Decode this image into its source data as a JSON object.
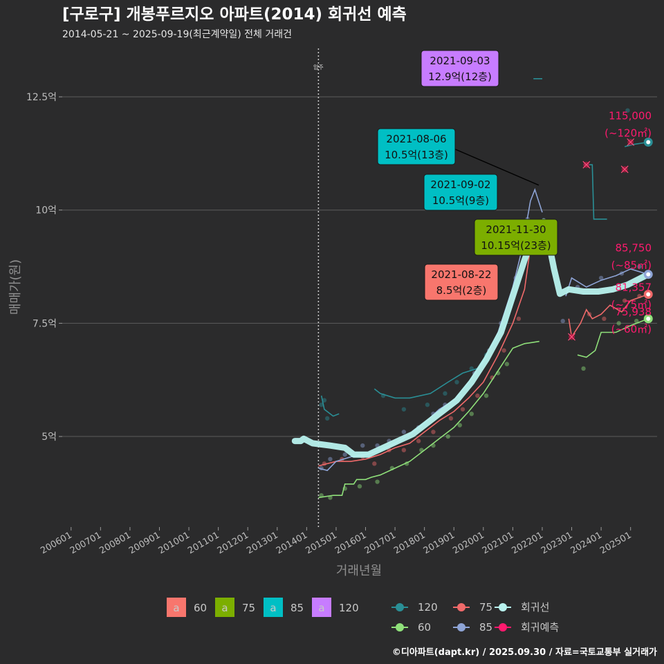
{
  "chart_data": {
    "type": "scatter",
    "title": "[구로구] 개봉푸르지오 아파트(2014) 회귀선 예측",
    "subtitle": "2014-05-21 ~ 2025-09-19(최근계약일) 전체 거래건",
    "xlabel": "거래년월",
    "ylabel": "매매가(원)",
    "x_ticks": [
      "200601",
      "200701",
      "200801",
      "200901",
      "201001",
      "201101",
      "201201",
      "201301",
      "201401",
      "201501",
      "201601",
      "201701",
      "201801",
      "201901",
      "202001",
      "202101",
      "202201",
      "202301",
      "202401",
      "202501"
    ],
    "xlim": [
      2005.7,
      2025.9
    ],
    "y_ticks": [
      {
        "v": 5,
        "label": "5억"
      },
      {
        "v": 7.5,
        "label": "7.5억"
      },
      {
        "v": 10,
        "label": "10억"
      },
      {
        "v": 12.5,
        "label": "12.5억"
      }
    ],
    "ylim": [
      3.0,
      13.6
    ],
    "grid": true,
    "move_in": {
      "x": 2014.4,
      "label": "입주"
    },
    "series": [
      {
        "name": "60",
        "color": "#8fe07a",
        "line": [
          [
            2014.4,
            3.65
          ],
          [
            2014.9,
            3.7
          ],
          [
            2015.2,
            3.7
          ],
          [
            2015.3,
            3.95
          ],
          [
            2015.6,
            3.95
          ],
          [
            2015.7,
            4.05
          ],
          [
            2016.0,
            4.05
          ],
          [
            2016.2,
            4.1
          ],
          [
            2016.5,
            4.15
          ],
          [
            2017.0,
            4.3
          ],
          [
            2017.5,
            4.45
          ],
          [
            2018.0,
            4.7
          ],
          [
            2018.5,
            4.95
          ],
          [
            2019.0,
            5.2
          ],
          [
            2019.5,
            5.55
          ],
          [
            2020.0,
            5.95
          ],
          [
            2020.5,
            6.45
          ],
          [
            2021.0,
            6.95
          ],
          [
            2021.4,
            7.05
          ],
          [
            2021.9,
            7.1
          ]
        ],
        "line2": [
          [
            2023.2,
            6.8
          ],
          [
            2023.5,
            6.75
          ],
          [
            2023.8,
            6.9
          ],
          [
            2024.0,
            7.3
          ],
          [
            2024.5,
            7.3
          ],
          [
            2025.0,
            7.45
          ],
          [
            2025.6,
            7.6
          ]
        ]
      },
      {
        "name": "75",
        "color": "#f06a6a",
        "line": [
          [
            2014.4,
            4.35
          ],
          [
            2015.0,
            4.45
          ],
          [
            2015.5,
            4.45
          ],
          [
            2016.0,
            4.5
          ],
          [
            2016.5,
            4.6
          ],
          [
            2017.0,
            4.75
          ],
          [
            2017.5,
            4.85
          ],
          [
            2018.0,
            5.1
          ],
          [
            2018.5,
            5.35
          ],
          [
            2019.0,
            5.55
          ],
          [
            2019.5,
            5.85
          ],
          [
            2020.0,
            6.2
          ],
          [
            2020.5,
            6.8
          ],
          [
            2021.0,
            7.5
          ],
          [
            2021.4,
            8.25
          ],
          [
            2021.7,
            9.65
          ],
          [
            2022.0,
            9.65
          ]
        ],
        "line2": [
          [
            2022.9,
            7.6
          ],
          [
            2023.0,
            7.2
          ],
          [
            2023.3,
            7.5
          ],
          [
            2023.5,
            7.8
          ],
          [
            2023.7,
            7.6
          ],
          [
            2024.0,
            7.7
          ],
          [
            2024.3,
            7.9
          ],
          [
            2024.7,
            7.75
          ],
          [
            2025.0,
            8.0
          ],
          [
            2025.6,
            8.14
          ]
        ]
      },
      {
        "name": "85",
        "color": "#8ea4d6",
        "line": [
          [
            2014.4,
            4.3
          ],
          [
            2014.7,
            4.25
          ],
          [
            2015.0,
            4.45
          ],
          [
            2015.5,
            4.55
          ],
          [
            2016.0,
            4.6
          ],
          [
            2016.5,
            4.7
          ],
          [
            2017.0,
            4.85
          ],
          [
            2017.5,
            5.05
          ],
          [
            2018.0,
            5.3
          ],
          [
            2018.5,
            5.6
          ],
          [
            2019.0,
            5.8
          ],
          [
            2019.5,
            6.2
          ],
          [
            2020.0,
            6.65
          ],
          [
            2020.5,
            7.3
          ],
          [
            2021.0,
            8.3
          ],
          [
            2021.3,
            9.1
          ],
          [
            2021.6,
            10.2
          ],
          [
            2021.75,
            10.45
          ],
          [
            2022.0,
            9.95
          ]
        ],
        "line2": [
          [
            2022.8,
            8.1
          ],
          [
            2023.0,
            8.5
          ],
          [
            2023.5,
            8.3
          ],
          [
            2024.0,
            8.45
          ],
          [
            2024.5,
            8.55
          ],
          [
            2025.0,
            8.7
          ],
          [
            2025.6,
            8.58
          ]
        ]
      },
      {
        "name": "120",
        "color": "#2a8f96",
        "line": [
          [
            2014.5,
            5.9
          ],
          [
            2014.6,
            5.6
          ],
          [
            2014.9,
            5.45
          ],
          [
            2015.1,
            5.5
          ]
        ],
        "line2": [
          [
            2016.3,
            6.05
          ],
          [
            2016.5,
            5.95
          ],
          [
            2017.0,
            5.85
          ],
          [
            2017.5,
            5.85
          ],
          [
            2018.2,
            5.95
          ],
          [
            2018.8,
            6.2
          ],
          [
            2019.3,
            6.4
          ],
          [
            2019.8,
            6.5
          ],
          [
            2020.3,
            7.0
          ],
          [
            2020.8,
            7.5
          ],
          [
            2021.3,
            8.7
          ]
        ],
        "line3": [
          [
            2021.7,
            12.9
          ],
          [
            2022.0,
            12.9
          ]
        ],
        "line4": [
          [
            2023.4,
            11.0
          ],
          [
            2023.7,
            11.0
          ],
          [
            2023.75,
            9.8
          ],
          [
            2024.2,
            9.8
          ]
        ],
        "line5": [
          [
            2024.8,
            11.4
          ],
          [
            2025.1,
            11.45
          ],
          [
            2025.6,
            11.5
          ]
        ]
      }
    ],
    "regression": {
      "name": "회귀선",
      "color": "#b8f2ee",
      "points": [
        [
          2013.6,
          4.9
        ],
        [
          2013.8,
          4.9
        ],
        [
          2013.9,
          4.95
        ],
        [
          2014.2,
          4.85
        ],
        [
          2014.8,
          4.8
        ],
        [
          2015.3,
          4.75
        ],
        [
          2015.6,
          4.6
        ],
        [
          2016.1,
          4.6
        ],
        [
          2016.6,
          4.75
        ],
        [
          2017.1,
          4.9
        ],
        [
          2017.6,
          5.05
        ],
        [
          2018.1,
          5.3
        ],
        [
          2018.6,
          5.55
        ],
        [
          2019.1,
          5.8
        ],
        [
          2019.6,
          6.2
        ],
        [
          2020.1,
          6.7
        ],
        [
          2020.6,
          7.3
        ],
        [
          2021.0,
          8.1
        ],
        [
          2021.4,
          8.9
        ],
        [
          2021.8,
          9.6
        ],
        [
          2022.05,
          9.75
        ],
        [
          2022.2,
          9.35
        ],
        [
          2022.4,
          8.7
        ],
        [
          2022.6,
          8.15
        ],
        [
          2022.9,
          8.25
        ],
        [
          2023.4,
          8.2
        ],
        [
          2023.9,
          8.2
        ],
        [
          2024.4,
          8.25
        ],
        [
          2024.9,
          8.35
        ],
        [
          2025.6,
          8.58
        ]
      ]
    },
    "prediction": {
      "name": "회귀예측",
      "color": "#ff1a6e"
    },
    "scatter_points": {
      "60": [
        [
          2014.5,
          3.7
        ],
        [
          2014.8,
          3.65
        ],
        [
          2015.3,
          3.85
        ],
        [
          2015.8,
          3.9
        ],
        [
          2016.4,
          4.0
        ],
        [
          2016.9,
          4.3
        ],
        [
          2017.4,
          4.4
        ],
        [
          2017.9,
          4.7
        ],
        [
          2018.3,
          4.8
        ],
        [
          2018.8,
          5.0
        ],
        [
          2019.2,
          5.25
        ],
        [
          2019.6,
          5.5
        ],
        [
          2020.1,
          5.9
        ],
        [
          2020.5,
          6.4
        ],
        [
          2020.8,
          6.6
        ],
        [
          2023.4,
          6.5
        ],
        [
          2024.6,
          7.5
        ],
        [
          2025.2,
          7.55
        ]
      ],
      "75": [
        [
          2014.6,
          4.4
        ],
        [
          2015.2,
          4.5
        ],
        [
          2015.9,
          4.55
        ],
        [
          2016.3,
          4.4
        ],
        [
          2016.8,
          4.7
        ],
        [
          2017.3,
          4.7
        ],
        [
          2017.8,
          4.9
        ],
        [
          2018.3,
          5.1
        ],
        [
          2018.9,
          5.4
        ],
        [
          2019.3,
          5.6
        ],
        [
          2019.8,
          5.9
        ],
        [
          2020.3,
          6.3
        ],
        [
          2020.7,
          6.9
        ],
        [
          2021.2,
          7.6
        ],
        [
          2023.6,
          7.7
        ],
        [
          2024.1,
          7.6
        ],
        [
          2024.8,
          8.0
        ],
        [
          2025.3,
          8.1
        ]
      ],
      "85": [
        [
          2014.5,
          4.3
        ],
        [
          2014.8,
          4.5
        ],
        [
          2015.3,
          4.6
        ],
        [
          2015.9,
          4.8
        ],
        [
          2016.4,
          4.8
        ],
        [
          2016.8,
          4.9
        ],
        [
          2017.3,
          5.1
        ],
        [
          2017.8,
          5.2
        ],
        [
          2018.3,
          5.5
        ],
        [
          2018.7,
          5.7
        ],
        [
          2019.2,
          5.9
        ],
        [
          2019.7,
          6.4
        ],
        [
          2020.2,
          6.9
        ],
        [
          2020.6,
          7.5
        ],
        [
          2021.1,
          8.5
        ],
        [
          2021.5,
          9.8
        ],
        [
          2022.7,
          7.55
        ],
        [
          2023.2,
          8.3
        ],
        [
          2024.0,
          8.5
        ],
        [
          2024.7,
          8.6
        ],
        [
          2025.3,
          8.75
        ]
      ],
      "120": [
        [
          2014.5,
          5.7
        ],
        [
          2014.6,
          5.8
        ],
        [
          2014.7,
          5.4
        ],
        [
          2016.6,
          5.9
        ],
        [
          2017.3,
          5.6
        ],
        [
          2018.1,
          5.7
        ],
        [
          2018.7,
          5.95
        ],
        [
          2019.1,
          6.2
        ],
        [
          2019.6,
          6.5
        ],
        [
          2020.1,
          6.8
        ],
        [
          2020.6,
          7.3
        ],
        [
          2024.9,
          12.2
        ]
      ]
    },
    "predicted_points": [
      [
        2023.0,
        7.2
      ],
      [
        2023.5,
        11.0
      ],
      [
        2024.8,
        10.9
      ],
      [
        2025.0,
        11.5
      ]
    ],
    "endpoints": [
      {
        "series": "120",
        "x": 2025.6,
        "y": 11.5,
        "value": "115,000",
        "area": "(~120㎡)"
      },
      {
        "series": "85",
        "x": 2025.6,
        "y": 8.58,
        "value": "85,750",
        "area": "(~85㎡)"
      },
      {
        "series": "75",
        "x": 2025.6,
        "y": 8.14,
        "value": "81,357",
        "area": "(~75㎡)"
      },
      {
        "series": "60",
        "x": 2025.6,
        "y": 7.6,
        "value": "75,938",
        "area": "(~60㎡)"
      }
    ],
    "annotations": [
      {
        "date": "2021-09-03",
        "value": "12.9억(12층)",
        "color": "#c77cff",
        "x": 2021.67,
        "y": 12.9
      },
      {
        "date": "2021-08-06",
        "value": "10.5억(13층)",
        "color": "#00bfc4",
        "x": 2021.6,
        "y": 10.55
      },
      {
        "date": "2021-09-02",
        "value": "10.5억(9층)",
        "color": "#00bfc4",
        "x": 2021.67,
        "y": 10.2
      },
      {
        "date": "2021-11-30",
        "value": "10.15억(23층)",
        "color": "#7cae00",
        "x": 2021.91,
        "y": 8.5
      },
      {
        "date": "2021-08-22",
        "value": "8.5억(2층)",
        "color": "#f8766d",
        "x": 2021.64,
        "y": 8.5
      }
    ],
    "legend_area": [
      {
        "key": "a",
        "label": "60",
        "color": "#f8766d"
      },
      {
        "key": "a",
        "label": "75",
        "color": "#7cae00"
      },
      {
        "key": "a",
        "label": "85",
        "color": "#00bfc4"
      },
      {
        "key": "a",
        "label": "120",
        "color": "#c77cff"
      }
    ],
    "legend_lines": [
      {
        "label": "120",
        "color": "#2a8f96"
      },
      {
        "label": "75",
        "color": "#f06a6a"
      },
      {
        "label": "회귀선",
        "color": "#b8f2ee"
      },
      {
        "label": "60",
        "color": "#8fe07a"
      },
      {
        "label": "85",
        "color": "#8ea4d6"
      },
      {
        "label": "회귀예측",
        "color": "#ff1a6e"
      }
    ],
    "footer": "©디아파트(dapt.kr) / 2025.09.30 / 자료=국토교통부 실거래가"
  }
}
